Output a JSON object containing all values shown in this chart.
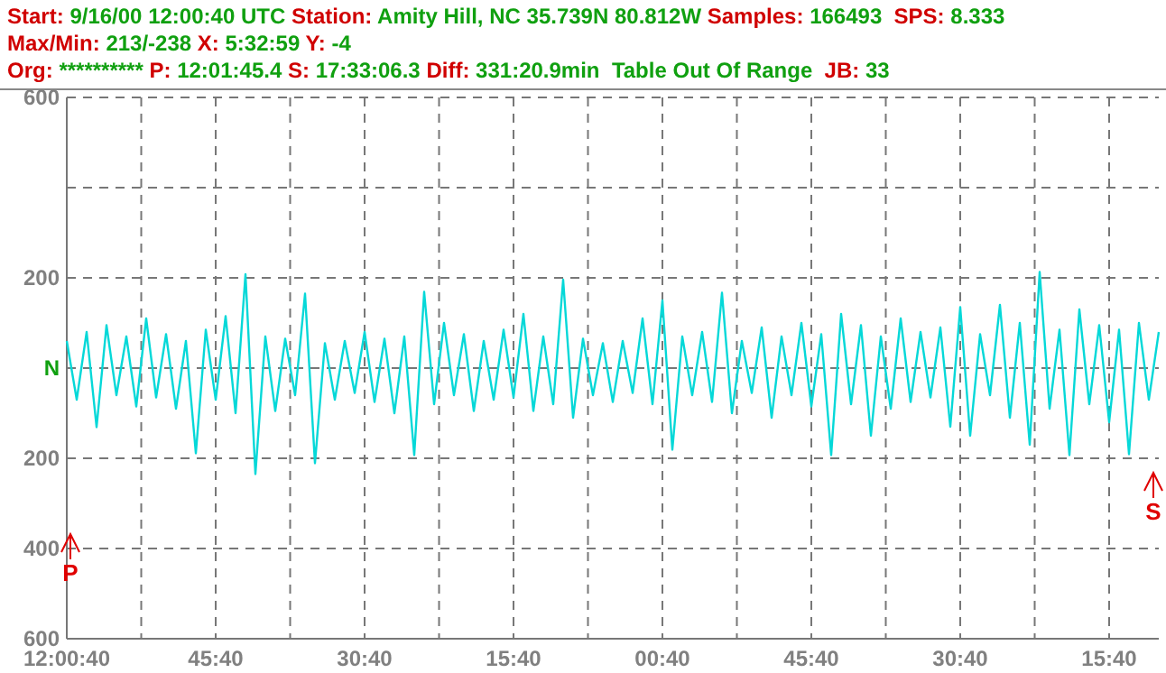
{
  "chart_data": {
    "type": "line",
    "title": "Start: 9/16/00 12:00:40 UTC Station: Amity Hill, NC 35.739N 80.812W Samples: 166493  SPS: 8.333",
    "subtitle": "Max/Min: 213/-238 X: 5:32:59 Y: -4",
    "annotations": [
      "Org: ********** P: 12:01:45.4 S: 17:33:06.3 Diff: 331:20.9min  Table Out Of Range  JB: 33",
      "P",
      "S"
    ],
    "categories": [
      "12:00:40",
      null,
      null,
      null,
      null,
      null,
      null,
      null,
      null,
      null,
      null,
      null,
      null,
      null,
      null,
      "45:40",
      null,
      null,
      null,
      null,
      null,
      null,
      null,
      null,
      null,
      null,
      null,
      null,
      null,
      null,
      "30:40",
      null,
      null,
      null,
      null,
      null,
      null,
      null,
      null,
      null,
      null,
      null,
      null,
      null,
      null,
      "15:40",
      null,
      null,
      null,
      null,
      null,
      null,
      null,
      null,
      null,
      null,
      null,
      null,
      null,
      null,
      "00:40",
      null,
      null,
      null,
      null,
      null,
      null,
      null,
      null,
      null,
      null,
      null,
      null,
      null,
      null,
      "45:40",
      null,
      null,
      null,
      null,
      null,
      null,
      null,
      null,
      null,
      null,
      null,
      null,
      null,
      null,
      "30:40",
      null,
      null,
      null,
      null,
      null,
      null,
      null,
      null,
      null,
      null,
      null,
      null,
      null,
      null,
      "15:40",
      null,
      null,
      null,
      null,
      null
    ],
    "ylim": [
      -600,
      600
    ],
    "yticks": [
      {
        "value": -600,
        "label": "600"
      },
      {
        "value": -400,
        "label": "400"
      },
      {
        "value": -200,
        "label": "200"
      },
      {
        "value": 0,
        "label": "N"
      },
      {
        "value": 200,
        "label": "200"
      },
      {
        "value": 400,
        "label": null
      },
      {
        "value": 600,
        "label": "600"
      }
    ],
    "grid": true,
    "series": [
      {
        "color": "#05d8d8",
        "values": [
          60,
          -70,
          80,
          -131,
          95,
          -60,
          70,
          -85,
          110,
          -65,
          75,
          -90,
          60,
          -189,
          85,
          -70,
          115,
          -100,
          208,
          -235,
          70,
          -95,
          65,
          -60,
          165,
          -211,
          55,
          -70,
          60,
          -55,
          80,
          -75,
          65,
          -100,
          70,
          -193,
          169,
          -80,
          100,
          -60,
          75,
          -95,
          60,
          -70,
          85,
          -65,
          120,
          -95,
          70,
          -80,
          196,
          -110,
          65,
          -60,
          55,
          -75,
          60,
          -55,
          110,
          -80,
          150,
          -181,
          70,
          -60,
          80,
          -75,
          167,
          -100,
          60,
          -55,
          90,
          -110,
          70,
          -60,
          100,
          -85,
          75,
          -193,
          120,
          -80,
          95,
          -150,
          70,
          -90,
          110,
          -75,
          80,
          -65,
          90,
          -130,
          135,
          -150,
          75,
          -60,
          140,
          -110,
          100,
          -170,
          213,
          -90,
          85,
          -193,
          130,
          -80,
          95,
          -120,
          85,
          -191,
          100,
          -70,
          80
        ]
      }
    ]
  }
}
